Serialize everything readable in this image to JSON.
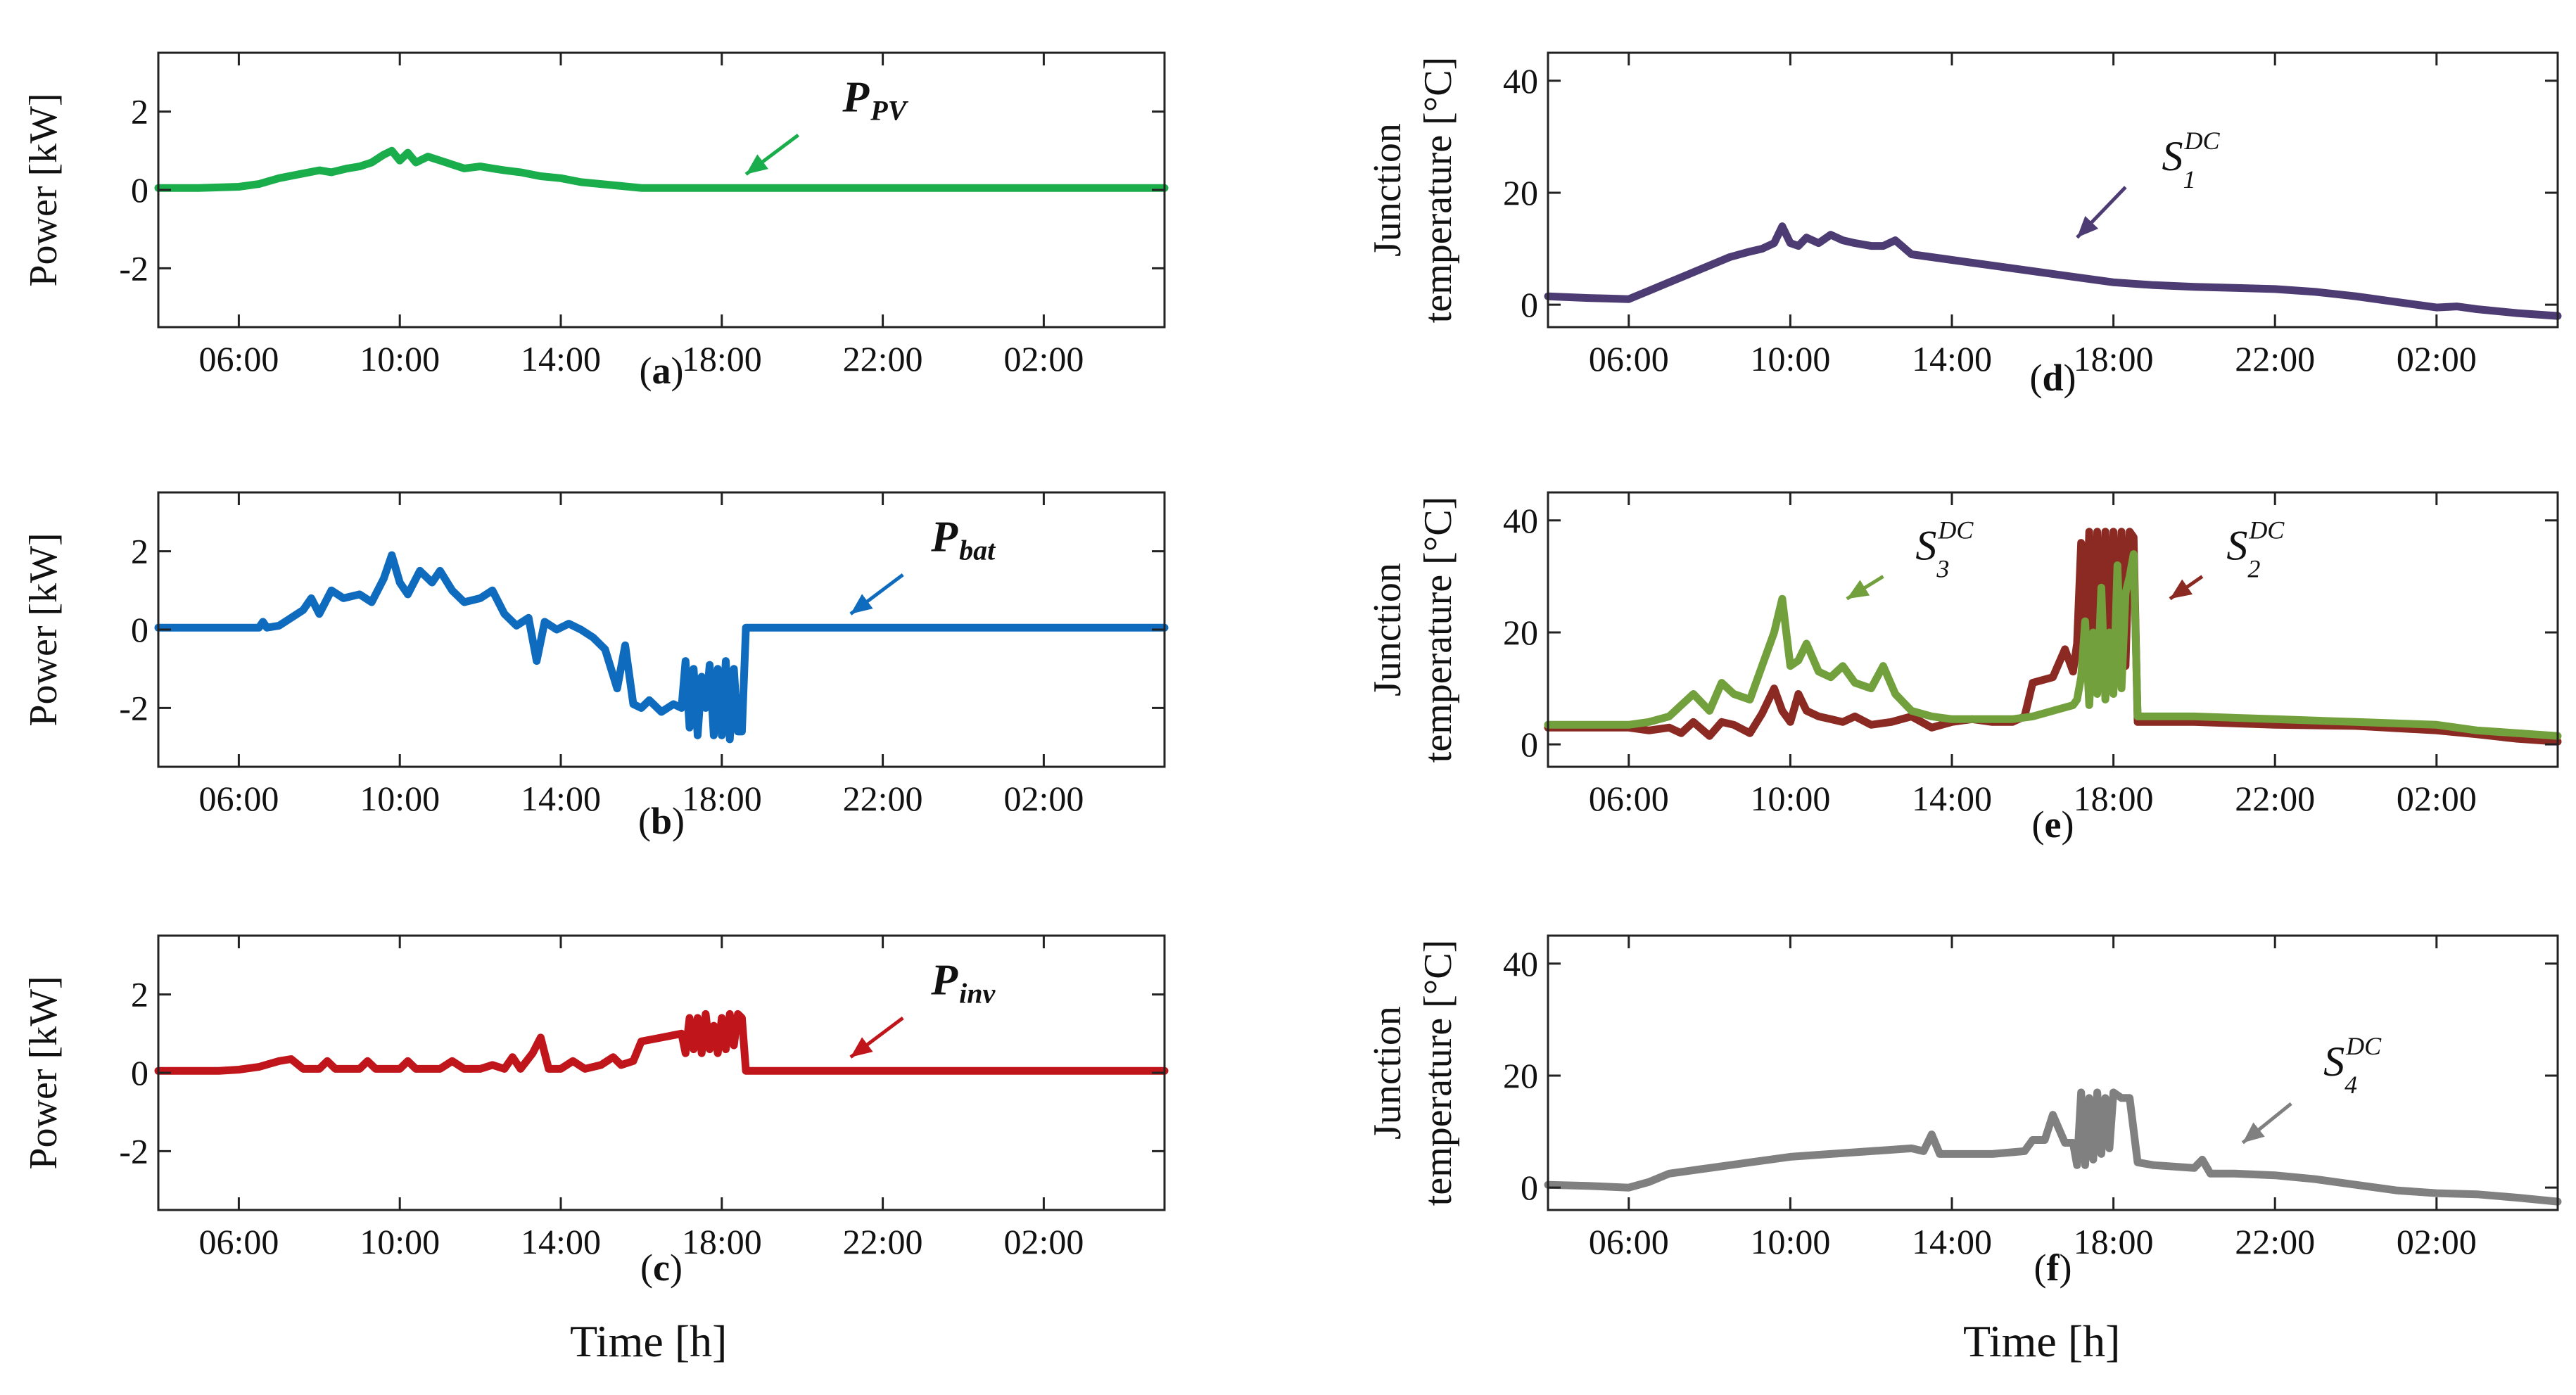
{
  "x_axis_label": "Time [h]",
  "chart_data": [
    {
      "type": "line",
      "id": "a",
      "caption": "a",
      "ylabel": "Power [kW]",
      "ylim": [
        -3.5,
        3.5
      ],
      "yticks": [
        2,
        0,
        -2
      ],
      "xlim": [
        4,
        29
      ],
      "xticks": [
        6,
        10,
        14,
        18,
        22,
        26
      ],
      "xtick_labels": [
        "06:00",
        "10:00",
        "14:00",
        "18:00",
        "22:00",
        "02:00"
      ],
      "annotation": {
        "main": "P",
        "sub": "PV",
        "text": "PPV",
        "bold": true,
        "color": "#1aad4c",
        "label_at": [
          21,
          2.0
        ],
        "arrow_from": [
          19.9,
          1.4
        ],
        "arrow_to": [
          18.6,
          0.4
        ]
      },
      "series": [
        {
          "name": "PPV",
          "color": "#1aad4c",
          "x": [
            4,
            5,
            6,
            6.5,
            7,
            7.5,
            8,
            8.3,
            8.7,
            9,
            9.3,
            9.6,
            9.8,
            10,
            10.2,
            10.4,
            10.7,
            11,
            11.3,
            11.6,
            12,
            12.3,
            12.6,
            13,
            13.5,
            14,
            14.5,
            15,
            15.5,
            16,
            17,
            29
          ],
          "y": [
            0.05,
            0.05,
            0.08,
            0.15,
            0.3,
            0.4,
            0.5,
            0.45,
            0.55,
            0.6,
            0.7,
            0.9,
            1.0,
            0.75,
            0.95,
            0.7,
            0.85,
            0.75,
            0.65,
            0.55,
            0.6,
            0.55,
            0.5,
            0.45,
            0.35,
            0.3,
            0.2,
            0.15,
            0.1,
            0.05,
            0.05,
            0.05
          ]
        }
      ]
    },
    {
      "type": "line",
      "id": "b",
      "caption": "b",
      "ylabel": "Power [kW]",
      "ylim": [
        -3.5,
        3.5
      ],
      "yticks": [
        2,
        0,
        -2
      ],
      "xlim": [
        4,
        29
      ],
      "xticks": [
        6,
        10,
        14,
        18,
        22,
        26
      ],
      "xtick_labels": [
        "06:00",
        "10:00",
        "14:00",
        "18:00",
        "22:00",
        "02:00"
      ],
      "annotation": {
        "main": "P",
        "sub": "bat",
        "text": "Pbat",
        "bold": true,
        "color": "#0f6bbd",
        "label_at": [
          23.2,
          2.0
        ],
        "arrow_from": [
          22.5,
          1.4
        ],
        "arrow_to": [
          21.2,
          0.4
        ]
      },
      "series": [
        {
          "name": "Pbat",
          "color": "#0f6bbd",
          "x": [
            4,
            6.5,
            6.6,
            6.7,
            7,
            7.3,
            7.6,
            7.8,
            8,
            8.3,
            8.6,
            9,
            9.3,
            9.6,
            9.8,
            10,
            10.2,
            10.5,
            10.8,
            11,
            11.3,
            11.6,
            12,
            12.3,
            12.6,
            12.9,
            13.2,
            13.4,
            13.6,
            13.9,
            14.2,
            14.5,
            14.8,
            15.1,
            15.4,
            15.6,
            15.8,
            16,
            16.2,
            16.5,
            16.8,
            17,
            17.1,
            17.2,
            17.3,
            17.4,
            17.5,
            17.6,
            17.7,
            17.8,
            17.9,
            18,
            18.1,
            18.2,
            18.3,
            18.4,
            18.5,
            18.6,
            29
          ],
          "y": [
            0.05,
            0.05,
            0.2,
            0.05,
            0.1,
            0.3,
            0.5,
            0.8,
            0.4,
            1.0,
            0.8,
            0.9,
            0.7,
            1.3,
            1.9,
            1.2,
            0.9,
            1.5,
            1.2,
            1.5,
            1.0,
            0.7,
            0.8,
            1.0,
            0.4,
            0.1,
            0.3,
            -0.8,
            0.2,
            0.0,
            0.15,
            0.0,
            -0.2,
            -0.5,
            -1.5,
            -0.4,
            -1.9,
            -2.0,
            -1.8,
            -2.1,
            -1.9,
            -2.0,
            -0.8,
            -2.5,
            -1.0,
            -2.7,
            -1.2,
            -2.0,
            -0.9,
            -2.7,
            -1.0,
            -2.7,
            -0.8,
            -2.8,
            -1.0,
            -2.6,
            -2.6,
            0.05,
            0.05
          ]
        }
      ]
    },
    {
      "type": "line",
      "id": "c",
      "caption": "c",
      "ylabel": "Power [kW]",
      "ylim": [
        -3.5,
        3.5
      ],
      "yticks": [
        2,
        0,
        -2
      ],
      "xlim": [
        4,
        29
      ],
      "xticks": [
        6,
        10,
        14,
        18,
        22,
        26
      ],
      "xtick_labels": [
        "06:00",
        "10:00",
        "14:00",
        "18:00",
        "22:00",
        "02:00"
      ],
      "annotation": {
        "main": "P",
        "sub": "inv",
        "text": "Pinv",
        "bold": true,
        "color": "#c0161b",
        "label_at": [
          23.2,
          2.0
        ],
        "arrow_from": [
          22.5,
          1.4
        ],
        "arrow_to": [
          21.2,
          0.4
        ]
      },
      "series": [
        {
          "name": "Pinv",
          "color": "#c0161b",
          "x": [
            4,
            5.5,
            6,
            6.5,
            7,
            7.3,
            7.6,
            8,
            8.2,
            8.4,
            9,
            9.2,
            9.4,
            10,
            10.2,
            10.4,
            11,
            11.3,
            11.6,
            12,
            12.3,
            12.6,
            12.8,
            13,
            13.3,
            13.5,
            13.7,
            14,
            14.3,
            14.6,
            15,
            15.3,
            15.5,
            15.8,
            16,
            16.5,
            17,
            17.1,
            17.2,
            17.3,
            17.4,
            17.5,
            17.6,
            17.7,
            17.8,
            17.9,
            18,
            18.1,
            18.2,
            18.3,
            18.4,
            18.5,
            18.6,
            29
          ],
          "y": [
            0.05,
            0.05,
            0.08,
            0.15,
            0.3,
            0.35,
            0.1,
            0.1,
            0.3,
            0.1,
            0.1,
            0.3,
            0.1,
            0.1,
            0.3,
            0.1,
            0.1,
            0.3,
            0.1,
            0.1,
            0.2,
            0.1,
            0.4,
            0.1,
            0.5,
            0.9,
            0.1,
            0.1,
            0.3,
            0.1,
            0.2,
            0.4,
            0.2,
            0.3,
            0.8,
            0.9,
            1.0,
            0.5,
            1.4,
            0.6,
            1.4,
            0.5,
            1.5,
            0.6,
            1.2,
            0.5,
            1.4,
            0.6,
            1.5,
            0.7,
            1.5,
            1.4,
            0.05,
            0.05
          ]
        }
      ]
    },
    {
      "type": "line",
      "id": "d",
      "caption": "d",
      "ylabel_line1": "Junction",
      "ylabel_line2": "temperature [°C]",
      "ylim": [
        -4,
        45
      ],
      "yticks": [
        40,
        20,
        0
      ],
      "xlim": [
        4,
        29
      ],
      "xticks": [
        6,
        10,
        14,
        18,
        22,
        26
      ],
      "xtick_labels": [
        "06:00",
        "10:00",
        "14:00",
        "18:00",
        "22:00",
        "02:00"
      ],
      "annotation": {
        "main": "S",
        "sub": "1",
        "sup": "DC",
        "text": "S1DC",
        "bold": false,
        "color": "#4d3b73",
        "label_at": [
          19.2,
          24
        ],
        "arrow_from": [
          18.3,
          21
        ],
        "arrow_to": [
          17.1,
          12
        ]
      },
      "series": [
        {
          "name": "S1DC",
          "color": "#4d3b73",
          "x": [
            4,
            5,
            6,
            6.5,
            7,
            7.5,
            8,
            8.5,
            9,
            9.3,
            9.6,
            9.8,
            10,
            10.2,
            10.4,
            10.7,
            11,
            11.3,
            11.6,
            12,
            12.3,
            12.6,
            13,
            13.5,
            14,
            14.5,
            15,
            16,
            17,
            18,
            19,
            20,
            21,
            22,
            23,
            24,
            25,
            26,
            26.5,
            27,
            28,
            29
          ],
          "y": [
            1.5,
            1.2,
            1.0,
            2.5,
            4,
            5.5,
            7,
            8.5,
            9.5,
            10,
            11,
            14,
            11,
            10.5,
            12,
            11,
            12.5,
            11.5,
            11,
            10.5,
            10.5,
            11.5,
            9,
            8.5,
            8,
            7.5,
            7,
            6,
            5,
            4,
            3.5,
            3.2,
            3.0,
            2.8,
            2.3,
            1.5,
            0.5,
            -0.5,
            -0.3,
            -0.8,
            -1.5,
            -2
          ]
        }
      ]
    },
    {
      "type": "line",
      "id": "e",
      "caption": "e",
      "ylabel_line1": "Junction",
      "ylabel_line2": "temperature [°C]",
      "ylim": [
        -4,
        45
      ],
      "yticks": [
        40,
        20,
        0
      ],
      "xlim": [
        4,
        29
      ],
      "xticks": [
        6,
        10,
        14,
        18,
        22,
        26
      ],
      "xtick_labels": [
        "06:00",
        "10:00",
        "14:00",
        "18:00",
        "22:00",
        "02:00"
      ],
      "annotations": [
        {
          "main": "S",
          "sub": "3",
          "sup": "DC",
          "text": "S3DC",
          "bold": false,
          "color": "#72a03c",
          "label_at": [
            13.1,
            33
          ],
          "arrow_from": [
            12.3,
            30
          ],
          "arrow_to": [
            11.4,
            26
          ]
        },
        {
          "main": "S",
          "sub": "2",
          "sup": "DC",
          "text": "S2DC",
          "bold": false,
          "color": "#8b2a22",
          "label_at": [
            20.8,
            33
          ],
          "arrow_from": [
            20.2,
            30
          ],
          "arrow_to": [
            19.4,
            26
          ]
        }
      ],
      "series": [
        {
          "name": "S2DC",
          "color": "#8b2a22",
          "x": [
            4,
            5,
            6,
            6.5,
            7,
            7.3,
            7.6,
            8,
            8.3,
            8.6,
            9,
            9.3,
            9.6,
            9.8,
            10,
            10.2,
            10.4,
            10.7,
            11,
            11.3,
            11.6,
            12,
            12.5,
            13,
            13.5,
            14,
            14.5,
            15,
            15.5,
            15.8,
            16,
            16.5,
            16.8,
            17,
            17.1,
            17.2,
            17.3,
            17.4,
            17.5,
            17.6,
            17.7,
            17.8,
            17.9,
            18,
            18.1,
            18.2,
            18.3,
            18.4,
            18.5,
            18.6,
            20,
            22,
            24,
            26,
            27,
            28,
            29
          ],
          "y": [
            3,
            3,
            3,
            2.5,
            3,
            2,
            4,
            1.5,
            4,
            3.5,
            2,
            5.5,
            10,
            6,
            4,
            9,
            6,
            5,
            4.5,
            4,
            5,
            3.5,
            4,
            5,
            3,
            4,
            4.5,
            4,
            4,
            5,
            11,
            12,
            17,
            13,
            18,
            36,
            15,
            38,
            12,
            38,
            14,
            38,
            16,
            38,
            15,
            38,
            14,
            38,
            37,
            4,
            4,
            3.5,
            3.3,
            2.5,
            1.8,
            1.0,
            0.5
          ]
        },
        {
          "name": "S3DC",
          "color": "#72a03c",
          "x": [
            4,
            5,
            6,
            6.5,
            7,
            7.3,
            7.6,
            8,
            8.3,
            8.6,
            9,
            9.3,
            9.6,
            9.8,
            10,
            10.2,
            10.4,
            10.7,
            11,
            11.3,
            11.6,
            12,
            12.3,
            12.6,
            13,
            13.5,
            14,
            14.5,
            15,
            15.5,
            16,
            16.5,
            17,
            17.1,
            17.2,
            17.3,
            17.4,
            17.5,
            17.6,
            17.7,
            17.8,
            17.9,
            18,
            18.1,
            18.2,
            18.3,
            18.4,
            18.5,
            18.6,
            20,
            22,
            24,
            26,
            27,
            28,
            29
          ],
          "y": [
            3.5,
            3.5,
            3.5,
            4,
            5,
            7,
            9,
            6,
            11,
            9,
            8,
            14,
            20,
            26,
            14,
            15,
            18,
            13,
            12,
            14,
            11,
            10,
            14,
            9,
            6,
            5,
            4.5,
            4.5,
            4.5,
            4.5,
            5,
            6,
            7,
            8,
            12,
            22,
            7,
            20,
            9,
            28,
            8,
            20,
            9,
            32,
            10,
            27,
            30,
            34,
            5,
            5,
            4.5,
            4,
            3.5,
            2.5,
            2,
            1.5
          ]
        }
      ]
    },
    {
      "type": "line",
      "id": "f",
      "caption": "f",
      "ylabel_line1": "Junction",
      "ylabel_line2": "temperature [°C]",
      "ylim": [
        -4,
        45
      ],
      "yticks": [
        40,
        20,
        0
      ],
      "xlim": [
        4,
        29
      ],
      "xticks": [
        6,
        10,
        14,
        18,
        22,
        26
      ],
      "xtick_labels": [
        "06:00",
        "10:00",
        "14:00",
        "18:00",
        "22:00",
        "02:00"
      ],
      "annotation": {
        "main": "S",
        "sub": "4",
        "sup": "DC",
        "text": "S4DC",
        "bold": false,
        "color": "#808080",
        "label_at": [
          23.2,
          20
        ],
        "arrow_from": [
          22.4,
          15
        ],
        "arrow_to": [
          21.2,
          8
        ]
      },
      "series": [
        {
          "name": "S4DC",
          "color": "#808080",
          "x": [
            4,
            5,
            6,
            6.5,
            7,
            7.5,
            8,
            9,
            10,
            11,
            12,
            13,
            13.3,
            13.5,
            13.7,
            14,
            15,
            15.8,
            16,
            16.3,
            16.5,
            16.8,
            17,
            17.1,
            17.2,
            17.3,
            17.4,
            17.5,
            17.6,
            17.7,
            17.8,
            17.9,
            18,
            18.2,
            18.4,
            18.6,
            19,
            20,
            20.2,
            20.4,
            21,
            22,
            23,
            24,
            25,
            26,
            27,
            28,
            29
          ],
          "y": [
            0.5,
            0.3,
            0,
            1,
            2.5,
            3,
            3.5,
            4.5,
            5.5,
            6,
            6.5,
            7,
            6.5,
            9.5,
            6,
            6,
            6,
            6.5,
            8.5,
            8.5,
            13,
            8,
            8,
            4,
            17,
            4,
            16,
            5,
            17,
            6,
            16,
            7,
            17,
            16,
            16,
            4.5,
            4,
            3.5,
            5,
            2.5,
            2.5,
            2.2,
            1.5,
            0.5,
            -0.5,
            -1.0,
            -1.2,
            -1.8,
            -2.5
          ]
        }
      ]
    }
  ]
}
